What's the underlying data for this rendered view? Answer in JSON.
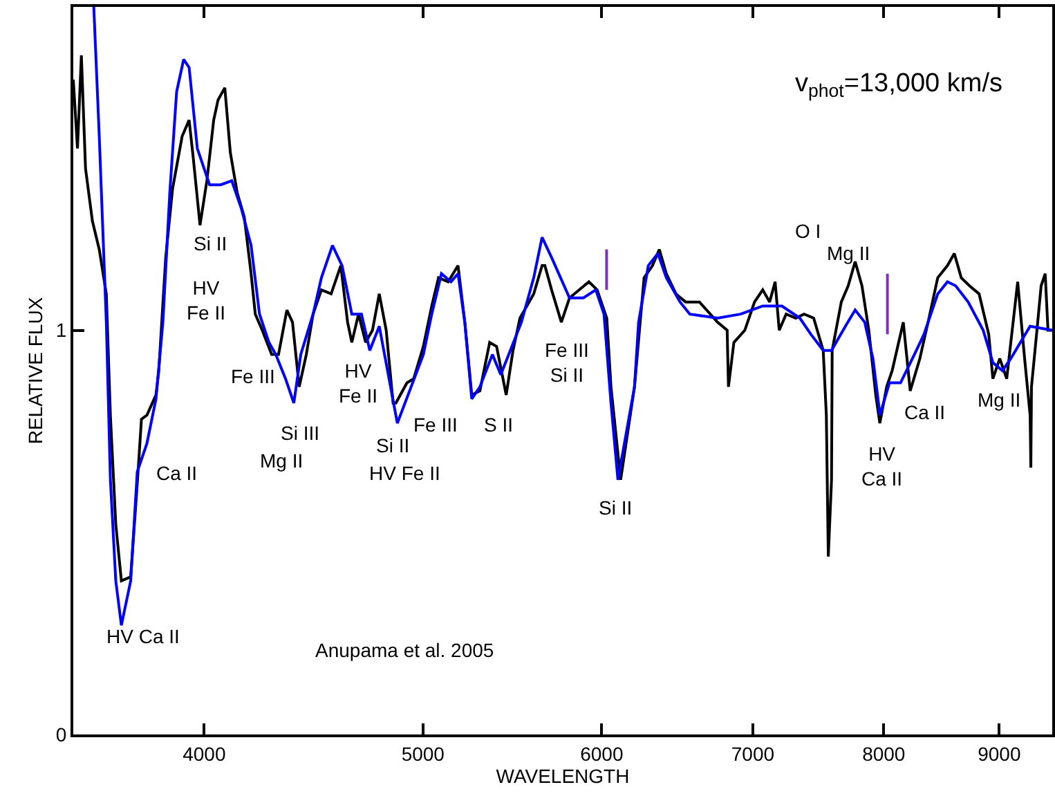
{
  "chart_data": {
    "type": "line",
    "log": "x",
    "xlabel": "WAVELENGTH",
    "ylabel": "RELATIVE FLUX",
    "xlim": [
      3500,
      9500
    ],
    "xticks": [
      4000,
      5000,
      6000,
      7000,
      8000,
      9000
    ],
    "ylim": [
      0,
      1.8
    ],
    "yticks": [
      0,
      1
    ],
    "grid": false,
    "line_style": "solid",
    "marker": "none",
    "series": [
      {
        "color": "#000000",
        "x": [
          3500,
          3515,
          3529,
          3544,
          3569,
          3594,
          3620,
          3635,
          3655,
          3676,
          3711,
          3736,
          3752,
          3773,
          3808,
          3819,
          3846,
          3873,
          3911,
          3939,
          3955,
          3983,
          4011,
          4039,
          4057,
          4085,
          4108,
          4137,
          4167,
          4196,
          4214,
          4244,
          4285,
          4315,
          4352,
          4377,
          4407,
          4439,
          4470,
          4508,
          4553,
          4598,
          4630,
          4650,
          4682,
          4716,
          4749,
          4782,
          4816,
          4850,
          4864,
          4919,
          4953,
          5002,
          5045,
          5080,
          5130,
          5182,
          5218,
          5255,
          5299,
          5352,
          5390,
          5443,
          5481,
          5520,
          5598,
          5646,
          5662,
          5701,
          5758,
          5806,
          5922,
          5972,
          6031,
          6057,
          6117,
          6204,
          6265,
          6319,
          6363,
          6409,
          6472,
          6536,
          6629,
          6752,
          6819,
          6828,
          6866,
          6943,
          7012,
          7071,
          7121,
          7161,
          7191,
          7242,
          7313,
          7375,
          7448,
          7521,
          7545,
          7560,
          7585,
          7590,
          7661,
          7715,
          7770,
          7824,
          7879,
          7935,
          7968,
          8024,
          8069,
          8161,
          8219,
          8300,
          8370,
          8453,
          8537,
          8597,
          8658,
          8731,
          8817,
          8904,
          8942,
          9005,
          9069,
          9171,
          9236,
          9288,
          9295,
          9301,
          9353,
          9393,
          9432,
          9459,
          9500
        ],
        "values": [
          1.62,
          1.45,
          1.68,
          1.4,
          1.27,
          1.2,
          1.09,
          0.79,
          0.52,
          0.38,
          0.39,
          0.62,
          0.78,
          0.79,
          0.84,
          0.9,
          1.18,
          1.35,
          1.48,
          1.52,
          1.43,
          1.26,
          1.37,
          1.52,
          1.57,
          1.6,
          1.44,
          1.34,
          1.28,
          1.14,
          1.04,
          1.0,
          0.94,
          0.94,
          1.05,
          1.02,
          0.86,
          0.94,
          1.04,
          1.1,
          1.09,
          1.16,
          1.02,
          0.97,
          1.04,
          0.97,
          1.0,
          1.09,
          1.0,
          0.82,
          0.82,
          0.87,
          0.88,
          0.96,
          1.06,
          1.13,
          1.12,
          1.16,
          1.02,
          0.84,
          0.85,
          0.97,
          0.96,
          0.84,
          0.95,
          1.03,
          1.09,
          1.16,
          1.16,
          1.1,
          1.02,
          1.08,
          1.12,
          1.1,
          1.03,
          0.86,
          0.63,
          0.86,
          1.13,
          1.16,
          1.2,
          1.14,
          1.09,
          1.07,
          1.07,
          1.02,
          1.0,
          0.86,
          0.97,
          1.0,
          1.07,
          1.1,
          1.07,
          1.12,
          1.0,
          1.04,
          1.03,
          1.04,
          1.03,
          0.95,
          0.79,
          0.44,
          0.63,
          0.95,
          1.07,
          1.11,
          1.17,
          1.11,
          1.0,
          0.84,
          0.77,
          0.86,
          0.9,
          1.02,
          0.85,
          0.93,
          1.02,
          1.13,
          1.16,
          1.19,
          1.13,
          1.11,
          1.09,
          0.99,
          0.88,
          0.93,
          0.88,
          1.12,
          0.93,
          0.79,
          0.66,
          0.86,
          1.0,
          1.11,
          1.14,
          1.0,
          1.0
        ]
      },
      {
        "color": "#0000ff",
        "x": [
          3574,
          3594,
          3620,
          3635,
          3655,
          3676,
          3711,
          3736,
          3773,
          3808,
          3835,
          3862,
          3889,
          3917,
          3939,
          3972,
          4022,
          4068,
          4114,
          4155,
          4196,
          4232,
          4273,
          4303,
          4346,
          4383,
          4414,
          4470,
          4508,
          4559,
          4604,
          4650,
          4696,
          4736,
          4782,
          4830,
          4871,
          4940,
          5002,
          5045,
          5095,
          5145,
          5182,
          5218,
          5255,
          5299,
          5367,
          5413,
          5466,
          5528,
          5598,
          5646,
          5701,
          5806,
          5889,
          5964,
          6014,
          6057,
          6100,
          6204,
          6230,
          6292,
          6354,
          6409,
          6499,
          6564,
          6752,
          6914,
          7071,
          7211,
          7344,
          7427,
          7521,
          7585,
          7693,
          7770,
          7846,
          7912,
          7957,
          7968,
          8047,
          8138,
          8254,
          8335,
          8453,
          8537,
          8609,
          8719,
          8854,
          8942,
          9030,
          9107,
          9197,
          9288,
          9500
        ],
        "values": [
          1.8,
          1.48,
          1.02,
          0.63,
          0.38,
          0.27,
          0.38,
          0.65,
          0.72,
          0.83,
          1.02,
          1.34,
          1.59,
          1.67,
          1.65,
          1.45,
          1.36,
          1.36,
          1.37,
          1.3,
          1.21,
          1.04,
          0.97,
          0.94,
          0.88,
          0.82,
          0.94,
          1.04,
          1.13,
          1.21,
          1.16,
          1.04,
          1.04,
          0.95,
          1.01,
          0.88,
          0.77,
          0.86,
          0.94,
          1.04,
          1.14,
          1.12,
          1.14,
          1.02,
          0.83,
          0.86,
          0.94,
          0.89,
          0.95,
          1.02,
          1.13,
          1.23,
          1.18,
          1.08,
          1.08,
          1.1,
          1.04,
          0.82,
          0.63,
          0.86,
          1.02,
          1.16,
          1.19,
          1.13,
          1.07,
          1.04,
          1.03,
          1.04,
          1.06,
          1.06,
          1.03,
          0.99,
          0.95,
          0.95,
          1.01,
          1.05,
          1.02,
          0.93,
          0.82,
          0.79,
          0.87,
          0.87,
          0.94,
          0.99,
          1.09,
          1.12,
          1.11,
          1.07,
          1.0,
          0.92,
          0.9,
          0.93,
          0.97,
          1.01,
          1.0
        ]
      },
      {
        "color": "#8030c0",
        "x": [
          6030,
          6030
        ],
        "values": [
          1.1,
          1.2
        ]
      },
      {
        "color": "#8030c0",
        "x": [
          8030,
          8030
        ],
        "values": [
          0.99,
          1.14
        ]
      }
    ],
    "annotations": [
      "HV Ca II",
      "Ca II",
      "Si II",
      "HV\nFe II",
      "Fe III",
      "Si III",
      "Mg II",
      "HV\nFe II",
      "Si II",
      "HV Fe II",
      "Fe III",
      "S II",
      "Fe III\nSi II",
      "Si II",
      "O I",
      "Mg II",
      "HV\nCa II",
      "Ca II",
      "Mg II",
      "v$_{phot}$=13,000 km/s",
      "Anupama et al. 2005"
    ]
  }
}
